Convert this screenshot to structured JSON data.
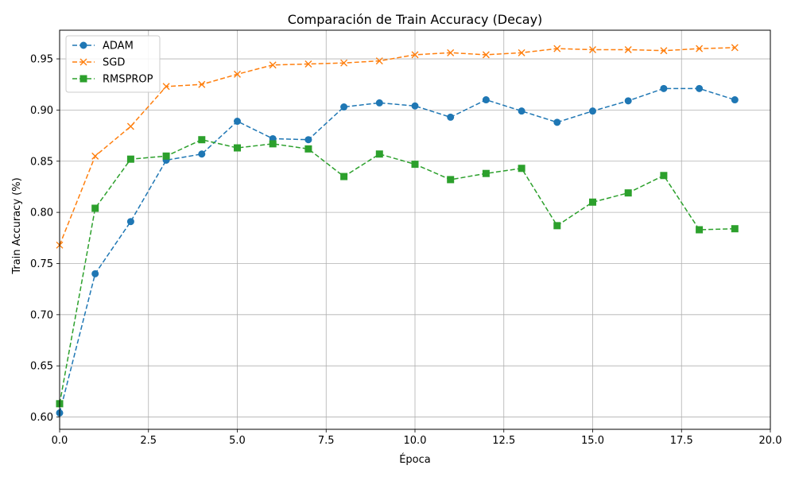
{
  "chart_data": {
    "type": "line",
    "title": "Comparación de Train Accuracy (Decay)",
    "xlabel": "Época",
    "ylabel": "Train Accuracy (%)",
    "xlim": [
      0,
      20
    ],
    "ylim": [
      0.588,
      0.978
    ],
    "xticks": [
      0,
      2.5,
      5,
      7.5,
      10,
      12.5,
      15,
      17.5,
      20
    ],
    "xtick_labels": [
      "0.0",
      "2.5",
      "5.0",
      "7.5",
      "10.0",
      "12.5",
      "15.0",
      "17.5",
      "20.0"
    ],
    "yticks": [
      0.6,
      0.65,
      0.7,
      0.75,
      0.8,
      0.85,
      0.9,
      0.95
    ],
    "ytick_labels": [
      "0.60",
      "0.65",
      "0.70",
      "0.75",
      "0.80",
      "0.85",
      "0.90",
      "0.95"
    ],
    "grid": true,
    "legend_position": "upper-left",
    "x": [
      0,
      1,
      2,
      3,
      4,
      5,
      6,
      7,
      8,
      9,
      10,
      11,
      12,
      13,
      14,
      15,
      16,
      17,
      18,
      19
    ],
    "series": [
      {
        "name": "ADAM",
        "color": "#1f77b4",
        "marker": "circle",
        "linestyle": "dashed",
        "values": [
          0.604,
          0.74,
          0.791,
          0.851,
          0.857,
          0.889,
          0.872,
          0.871,
          0.903,
          0.907,
          0.904,
          0.893,
          0.91,
          0.899,
          0.888,
          0.899,
          0.909,
          0.921,
          0.921,
          0.91
        ]
      },
      {
        "name": "SGD",
        "color": "#ff7f0e",
        "marker": "x",
        "linestyle": "dashed",
        "values": [
          0.768,
          0.855,
          0.884,
          0.923,
          0.925,
          0.935,
          0.944,
          0.945,
          0.946,
          0.948,
          0.954,
          0.956,
          0.954,
          0.956,
          0.96,
          0.959,
          0.959,
          0.958,
          0.96,
          0.961
        ]
      },
      {
        "name": "RMSPROP",
        "color": "#2ca02c",
        "marker": "square",
        "linestyle": "dashed",
        "values": [
          0.613,
          0.804,
          0.852,
          0.855,
          0.871,
          0.863,
          0.867,
          0.862,
          0.835,
          0.857,
          0.847,
          0.832,
          0.838,
          0.843,
          0.787,
          0.81,
          0.819,
          0.836,
          0.783,
          0.784
        ]
      }
    ]
  }
}
